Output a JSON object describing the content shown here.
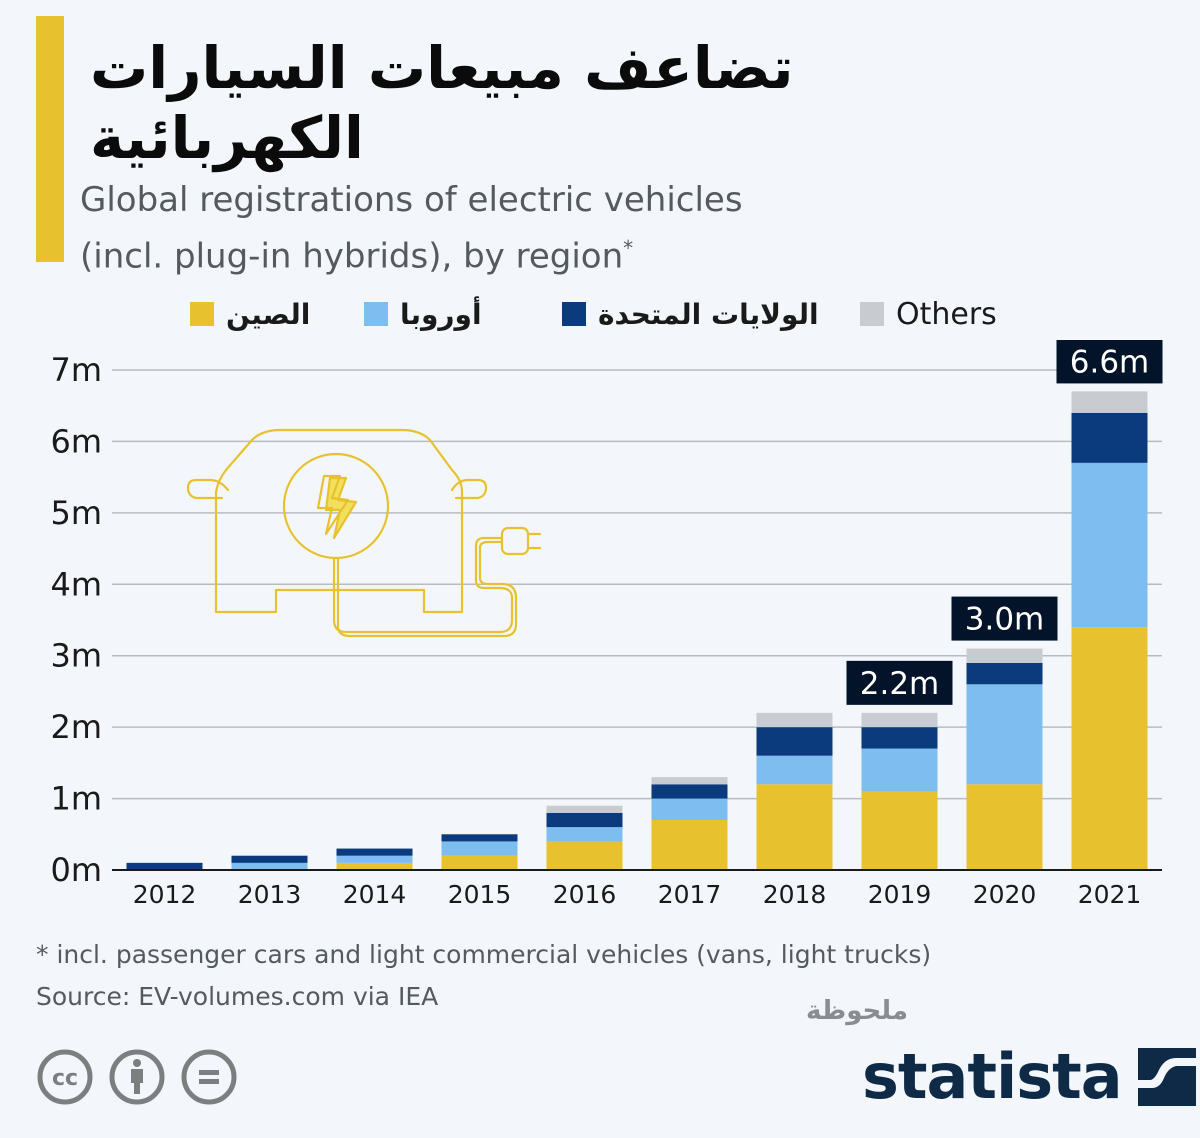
{
  "title": "تضاعف مبيعات السيارات الكهربائية",
  "subtitle_line1": "Global registrations of electric vehicles",
  "subtitle_line2": "(incl. plug-in hybrids), by region",
  "subtitle_marker": "*",
  "legend": [
    {
      "key": "china",
      "label": "الصين",
      "color": "#e8c22e"
    },
    {
      "key": "europe",
      "label": "أوروبا",
      "color": "#7dbdf0"
    },
    {
      "key": "us",
      "label": "الولايات المتحدة",
      "color": "#0b3b7c"
    },
    {
      "key": "others",
      "label": "Others",
      "color": "#c8ccd0"
    }
  ],
  "chart_data": {
    "type": "bar",
    "stacked": true,
    "title": "Global registrations of electric vehicles (incl. plug-in hybrids), by region",
    "xlabel": "",
    "ylabel": "",
    "categories": [
      "2012",
      "2013",
      "2014",
      "2015",
      "2016",
      "2017",
      "2018",
      "2019",
      "2020",
      "2021"
    ],
    "series": [
      {
        "name": "الصين",
        "key": "china",
        "color": "#e8c22e",
        "values": [
          0,
          0,
          0.1,
          0.2,
          0.4,
          0.7,
          1.2,
          1.1,
          1.2,
          3.4
        ]
      },
      {
        "name": "أوروبا",
        "key": "europe",
        "color": "#7dbdf0",
        "values": [
          0,
          0.1,
          0.1,
          0.2,
          0.2,
          0.3,
          0.4,
          0.6,
          1.4,
          2.3
        ]
      },
      {
        "name": "الولايات المتحدة",
        "key": "us",
        "color": "#0b3b7c",
        "values": [
          0.1,
          0.1,
          0.1,
          0.1,
          0.2,
          0.2,
          0.4,
          0.3,
          0.3,
          0.7
        ]
      },
      {
        "name": "Others",
        "key": "others",
        "color": "#c8ccd0",
        "values": [
          0,
          0,
          0,
          0,
          0.1,
          0.1,
          0.2,
          0.2,
          0.2,
          0.3
        ]
      }
    ],
    "unit": "m",
    "ylim": [
      0,
      7
    ],
    "yticks": [
      0,
      1,
      2,
      3,
      4,
      5,
      6,
      7
    ],
    "ytick_labels": [
      "0m",
      "1m",
      "2m",
      "3m",
      "4m",
      "5m",
      "6m",
      "7m"
    ],
    "grid": true,
    "legend_position": "top",
    "annotations": [
      {
        "category": "2019",
        "text": "2.2m",
        "value": 2.2
      },
      {
        "category": "2020",
        "text": "3.0m",
        "value": 3.0
      },
      {
        "category": "2021",
        "text": "6.6m",
        "value": 6.6
      }
    ]
  },
  "footnote": "* incl. passenger cars and light commercial vehicles (vans, light trucks)",
  "source": "Source: EV-volumes.com via IEA",
  "note_label": "ملحوظة",
  "brand": "statista",
  "license_icons": [
    "cc-icon",
    "attribution-icon",
    "no-derivatives-icon"
  ],
  "colors": {
    "accent": "#e8c22e",
    "label_bg": "#03132a",
    "brand": "#0f2a47",
    "background": "#f3f7fb"
  }
}
